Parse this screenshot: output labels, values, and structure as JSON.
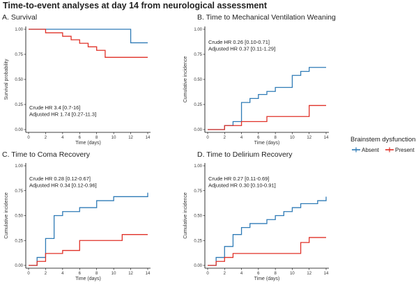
{
  "figure_title": "Time-to-event analyses at day 14 from neurological assessment",
  "colors": {
    "absent": "#2f7bb6",
    "present": "#e03027"
  },
  "legend": {
    "title": "Brainstem dysfunction",
    "entries": [
      {
        "label": "Absent",
        "color": "#2f7bb6"
      },
      {
        "label": "Present",
        "color": "#e03027"
      }
    ]
  },
  "chart_data": [
    {
      "type": "line",
      "subtype": "step",
      "title": "A. Survival",
      "xlabel": "Time (days)",
      "ylabel": "Survival probability",
      "xlim": [
        0,
        14
      ],
      "ylim": [
        0,
        1
      ],
      "xticks": [
        "0",
        "2",
        "4",
        "6",
        "8",
        "10",
        "12",
        "14"
      ],
      "yticks": [
        "0.00",
        "0.25",
        "0.50",
        "0.75",
        "1.00"
      ],
      "annotation": [
        "Crude HR 3.4 [0.7-16]",
        "Adjusted HR 1.74 [0.27-11.3]"
      ],
      "annotation_position": "bottom-left",
      "series": [
        {
          "name": "Absent",
          "x": [
            0,
            12,
            14
          ],
          "y": [
            1.0,
            0.865,
            0.865
          ]
        },
        {
          "name": "Present",
          "x": [
            0,
            2,
            4,
            5,
            6,
            7,
            8,
            9,
            14
          ],
          "y": [
            1.0,
            0.965,
            0.93,
            0.895,
            0.86,
            0.825,
            0.79,
            0.72,
            0.72
          ]
        }
      ]
    },
    {
      "type": "line",
      "subtype": "step",
      "title": "B. Time to Mechanical Ventilation Weaning",
      "xlabel": "Time (days)",
      "ylabel": "Cumulative incidence",
      "xlim": [
        0,
        14
      ],
      "ylim": [
        0,
        1
      ],
      "xticks": [
        "0",
        "2",
        "4",
        "6",
        "8",
        "10",
        "12",
        "14"
      ],
      "yticks": [
        "0.00",
        "0.25",
        "0.50",
        "0.75",
        "1.00"
      ],
      "annotation": [
        "Crude HR 0.26 [0.10-0.71]",
        "Adjusted HR 0.37 [0.11-1.29]"
      ],
      "annotation_position": "top-left",
      "series": [
        {
          "name": "Absent",
          "x": [
            0,
            2,
            3,
            4,
            5,
            6,
            7,
            8,
            10,
            11,
            12,
            14
          ],
          "y": [
            0,
            0.04,
            0.08,
            0.27,
            0.31,
            0.35,
            0.38,
            0.42,
            0.54,
            0.58,
            0.62,
            0.62
          ]
        },
        {
          "name": "Present",
          "x": [
            0,
            2,
            3,
            4,
            6,
            7,
            12,
            14
          ],
          "y": [
            0,
            0.04,
            0.04,
            0.08,
            0.08,
            0.13,
            0.24,
            0.24
          ]
        }
      ]
    },
    {
      "type": "line",
      "subtype": "step",
      "title": "C. Time to Coma Recovery",
      "xlabel": "Time (days)",
      "ylabel": "Cumulative incidence",
      "xlim": [
        0,
        14
      ],
      "ylim": [
        0,
        1
      ],
      "xticks": [
        "0",
        "2",
        "4",
        "6",
        "8",
        "10",
        "12",
        "14"
      ],
      "yticks": [
        "0.00",
        "0.25",
        "0.50",
        "0.75",
        "1.00"
      ],
      "annotation": [
        "Crude HR 0.28 [0.12-0.67]",
        "Adjusted HR 0.34 [0.12-0.96]"
      ],
      "annotation_position": "top-left",
      "series": [
        {
          "name": "Absent",
          "x": [
            0,
            1,
            2,
            3,
            4,
            6,
            8,
            10,
            14
          ],
          "y": [
            0,
            0.08,
            0.27,
            0.5,
            0.54,
            0.58,
            0.65,
            0.69,
            0.73
          ]
        },
        {
          "name": "Present",
          "x": [
            0,
            1,
            2,
            4,
            6,
            11,
            14
          ],
          "y": [
            0,
            0.04,
            0.12,
            0.15,
            0.25,
            0.31,
            0.31
          ]
        }
      ]
    },
    {
      "type": "line",
      "subtype": "step",
      "title": "D. Time to Delirium Recovery",
      "xlabel": "Time (days)",
      "ylabel": "Cumulative incidence",
      "xlim": [
        0,
        14
      ],
      "ylim": [
        0,
        1
      ],
      "xticks": [
        "0",
        "2",
        "4",
        "6",
        "8",
        "10",
        "12",
        "14"
      ],
      "yticks": [
        "0.00",
        "0.25",
        "0.50",
        "0.75",
        "1.00"
      ],
      "annotation": [
        "Crude HR 0.27 [0.11-0.69]",
        "Adjusted HR 0.30 [0.10-0.91]"
      ],
      "annotation_position": "top-left",
      "series": [
        {
          "name": "Absent",
          "x": [
            0,
            1,
            2,
            3,
            4,
            5,
            7,
            8,
            9,
            10,
            11,
            13,
            14
          ],
          "y": [
            0,
            0.08,
            0.19,
            0.31,
            0.38,
            0.42,
            0.46,
            0.5,
            0.54,
            0.58,
            0.62,
            0.65,
            0.69
          ]
        },
        {
          "name": "Present",
          "x": [
            0,
            1,
            2,
            3,
            11,
            12,
            14
          ],
          "y": [
            0,
            0.04,
            0.08,
            0.12,
            0.23,
            0.28,
            0.28
          ]
        }
      ]
    }
  ]
}
